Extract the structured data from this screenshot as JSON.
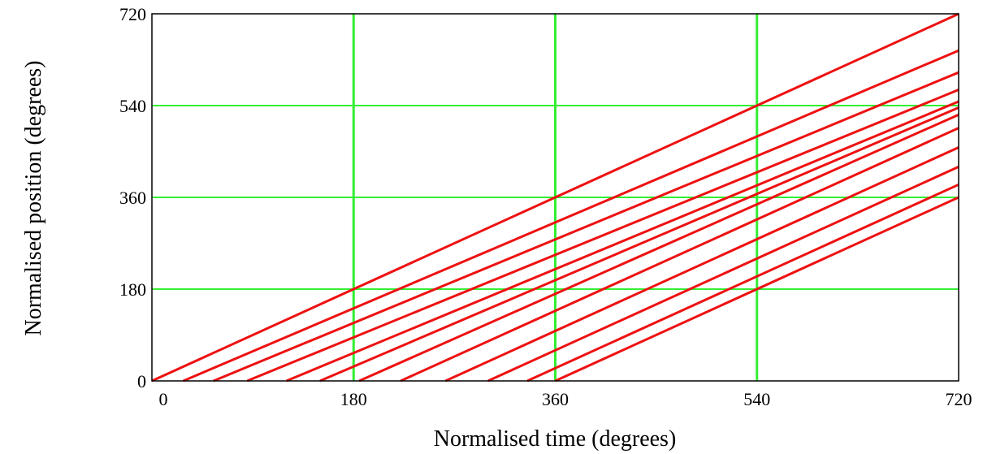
{
  "chart_data": {
    "type": "line",
    "title": "",
    "xlabel": "Normalised time (degrees)",
    "ylabel": "Normalised position (degrees)",
    "xlim": [
      0,
      720
    ],
    "ylim": [
      0,
      720
    ],
    "x_ticks": [
      0,
      180,
      360,
      540,
      720
    ],
    "y_ticks": [
      0,
      180,
      360,
      540,
      720
    ],
    "x_tick_labels": [
      "0",
      "180",
      "360",
      "540",
      "720"
    ],
    "y_tick_labels": [
      "0",
      "180",
      "360",
      "540",
      "720"
    ],
    "grid": true,
    "legend": "none",
    "colors": {
      "grid": "#33ee33",
      "series": "#ee1111",
      "frame": "#000000"
    },
    "series": [
      {
        "x": [
          0,
          720
        ],
        "y": [
          0,
          720
        ]
      },
      {
        "x": [
          28,
          720
        ],
        "y": [
          0,
          648
        ]
      },
      {
        "x": [
          55,
          720
        ],
        "y": [
          0,
          605
        ]
      },
      {
        "x": [
          85,
          720
        ],
        "y": [
          0,
          571
        ]
      },
      {
        "x": [
          120,
          720
        ],
        "y": [
          0,
          548
        ]
      },
      {
        "x": [
          150,
          720
        ],
        "y": [
          0,
          536
        ]
      },
      {
        "x": [
          185,
          720
        ],
        "y": [
          0,
          522
        ]
      },
      {
        "x": [
          222,
          720
        ],
        "y": [
          0,
          496
        ]
      },
      {
        "x": [
          262,
          720
        ],
        "y": [
          0,
          458
        ]
      },
      {
        "x": [
          300,
          720
        ],
        "y": [
          0,
          420
        ]
      },
      {
        "x": [
          335,
          720
        ],
        "y": [
          0,
          385
        ]
      },
      {
        "x": [
          360,
          720
        ],
        "y": [
          0,
          360
        ]
      }
    ]
  }
}
